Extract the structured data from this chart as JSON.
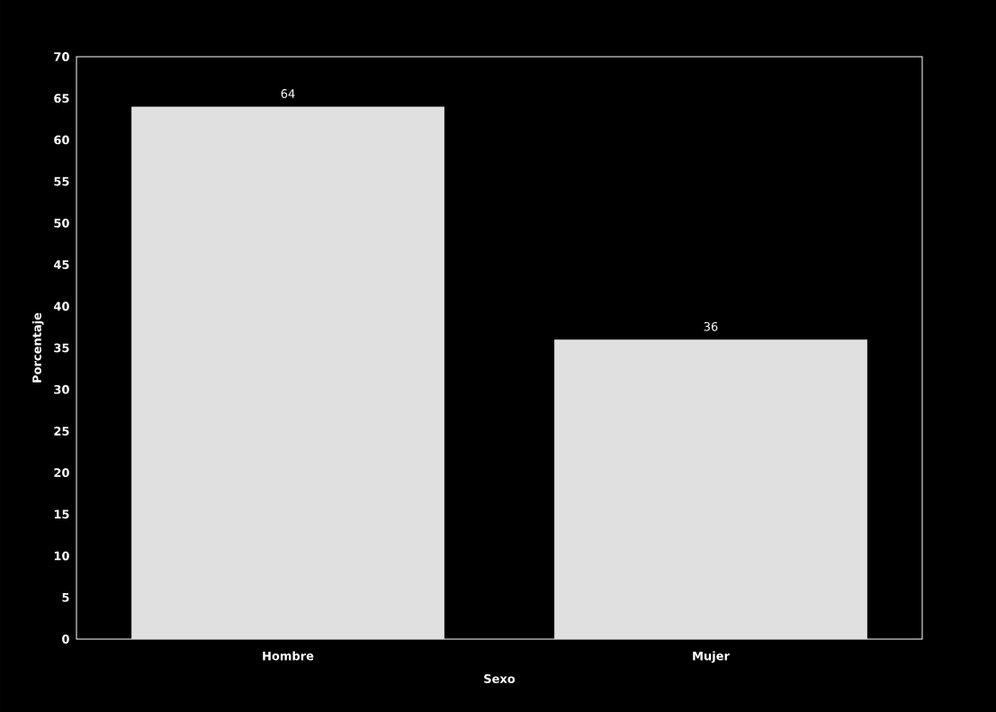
{
  "chart_data": {
    "type": "bar",
    "xlabel": "Sexo",
    "ylabel": "Porcentaje",
    "categories": [
      "Hombre",
      "Mujer"
    ],
    "values": [
      64,
      36
    ],
    "color": "#e0e0e0",
    "ylim": [
      0,
      70
    ],
    "yticks": [
      0,
      5,
      10,
      15,
      20,
      25,
      30,
      35,
      40,
      45,
      50,
      55,
      60,
      65,
      70
    ],
    "data_labels": true
  }
}
